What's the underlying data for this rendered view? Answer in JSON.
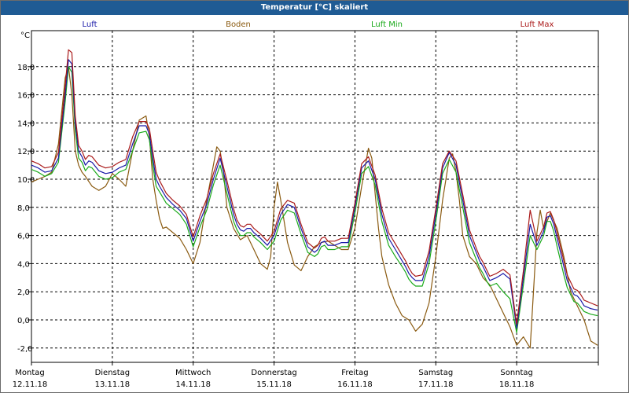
{
  "chart_data": {
    "type": "line",
    "title": "Temperatur [°C] skaliert",
    "ylabel": "°C",
    "ylim": [
      -3,
      20
    ],
    "yticks": [
      -2,
      0,
      2,
      4,
      6,
      8,
      10,
      12,
      14,
      16,
      18
    ],
    "ytick_labels": [
      "-2,0",
      "0,0",
      "2,0",
      "4,0",
      "6,0",
      "8,0",
      "10,0",
      "12,0",
      "14,0",
      "16,0",
      "18,0"
    ],
    "xlim": [
      0,
      168
    ],
    "day_hours": [
      0,
      24,
      48,
      72,
      96,
      120,
      144
    ],
    "days": [
      {
        "name": "Montag",
        "date": "12.11.18"
      },
      {
        "name": "Dienstag",
        "date": "13.11.18"
      },
      {
        "name": "Mittwoch",
        "date": "14.11.18"
      },
      {
        "name": "Donnerstag",
        "date": "15.11.18"
      },
      {
        "name": "Freitag",
        "date": "16.11.18"
      },
      {
        "name": "Samstag",
        "date": "17.11.18"
      },
      {
        "name": "Sonntag",
        "date": "18.11.18"
      }
    ],
    "grid": true,
    "series": [
      {
        "name": "Luft",
        "color": "#1a1aa8",
        "x": [
          0,
          2,
          4,
          6,
          8,
          10,
          11,
          12,
          13,
          14,
          15,
          16,
          17,
          18,
          20,
          22,
          24,
          26,
          28,
          30,
          32,
          34,
          35,
          36,
          37,
          38,
          40,
          42,
          44,
          46,
          48,
          50,
          52,
          54,
          56,
          58,
          60,
          61,
          62,
          63,
          64,
          65,
          66,
          68,
          70,
          72,
          74,
          76,
          78,
          80,
          82,
          84,
          85,
          86,
          87,
          88,
          90,
          92,
          94,
          96,
          98,
          100,
          102,
          104,
          106,
          108,
          110,
          111,
          112,
          113,
          114,
          116,
          118,
          120,
          122,
          124,
          126,
          128,
          130,
          132,
          133,
          134,
          135,
          136,
          138,
          140,
          142,
          144,
          146,
          148,
          150,
          152,
          153,
          154,
          155,
          156,
          157,
          158,
          159,
          160,
          161,
          162,
          163,
          164,
          166,
          168
        ],
        "y": [
          11.0,
          10.8,
          10.5,
          10.6,
          11.5,
          16.0,
          18.5,
          18.2,
          14.0,
          12.0,
          11.6,
          11.0,
          11.3,
          11.2,
          10.6,
          10.4,
          10.5,
          10.8,
          11.0,
          12.5,
          13.8,
          13.8,
          13.2,
          11.5,
          10.0,
          9.5,
          8.7,
          8.2,
          7.8,
          7.2,
          5.6,
          7.0,
          8.2,
          10.0,
          11.5,
          9.5,
          7.5,
          6.8,
          6.4,
          6.3,
          6.5,
          6.5,
          6.2,
          5.8,
          5.3,
          6.0,
          7.5,
          8.2,
          8.0,
          6.5,
          5.2,
          4.8,
          5.0,
          5.5,
          5.6,
          5.3,
          5.3,
          5.5,
          5.5,
          8.0,
          10.8,
          11.3,
          10.0,
          7.5,
          5.8,
          5.0,
          4.2,
          3.8,
          3.3,
          3.0,
          2.8,
          2.8,
          4.5,
          7.5,
          10.8,
          11.9,
          11.0,
          8.5,
          6.0,
          4.8,
          4.2,
          3.8,
          3.3,
          2.8,
          3.0,
          3.3,
          2.9,
          -0.6,
          3.0,
          6.8,
          5.3,
          6.3,
          7.3,
          7.4,
          6.8,
          5.8,
          4.8,
          3.8,
          2.8,
          2.3,
          1.8,
          1.7,
          1.4,
          1.0,
          0.8,
          0.7
        ]
      },
      {
        "name": "Boden",
        "color": "#8a5a10",
        "x": [
          0,
          2,
          4,
          6,
          8,
          10,
          11,
          12,
          13,
          14,
          15,
          16,
          18,
          20,
          22,
          24,
          26,
          28,
          30,
          32,
          34,
          35,
          36,
          37,
          38,
          39,
          40,
          42,
          44,
          46,
          48,
          50,
          52,
          54,
          55,
          56,
          57,
          58,
          60,
          62,
          64,
          66,
          68,
          70,
          71,
          72,
          73,
          74,
          76,
          78,
          80,
          82,
          84,
          86,
          88,
          90,
          92,
          94,
          96,
          98,
          100,
          101,
          102,
          103,
          104,
          106,
          108,
          110,
          112,
          114,
          116,
          118,
          120,
          122,
          124,
          125,
          126,
          127,
          128,
          130,
          132,
          134,
          136,
          138,
          140,
          142,
          144,
          146,
          148,
          150,
          151,
          152,
          153,
          154,
          156,
          158,
          160,
          162,
          164,
          166,
          168
        ],
        "y": [
          9.8,
          10.0,
          10.2,
          10.5,
          12.5,
          17.2,
          18.0,
          16.0,
          12.0,
          11.0,
          10.5,
          10.2,
          9.5,
          9.2,
          9.5,
          10.4,
          10.0,
          9.5,
          12.0,
          14.2,
          14.5,
          13.0,
          10.0,
          8.5,
          7.2,
          6.5,
          6.6,
          6.2,
          5.8,
          5.0,
          4.0,
          5.5,
          8.5,
          11.0,
          12.3,
          12.0,
          10.5,
          8.0,
          6.5,
          5.7,
          6.0,
          5.0,
          4.0,
          3.6,
          4.5,
          8.0,
          9.8,
          8.5,
          5.5,
          3.9,
          3.5,
          4.5,
          5.2,
          5.5,
          5.6,
          5.3,
          5.0,
          5.0,
          6.5,
          9.5,
          12.2,
          11.5,
          9.0,
          6.5,
          4.5,
          2.5,
          1.2,
          0.3,
          0.0,
          -0.8,
          -0.3,
          1.2,
          4.5,
          8.5,
          11.5,
          11.8,
          10.5,
          8.5,
          6.0,
          4.5,
          4.0,
          3.0,
          2.5,
          1.5,
          0.5,
          -0.5,
          -1.8,
          -1.2,
          -2.0,
          6.2,
          7.8,
          6.5,
          7.0,
          7.6,
          6.5,
          4.5,
          2.0,
          1.0,
          0.0,
          -1.5,
          -1.8
        ]
      },
      {
        "name": "Luft Min",
        "color": "#1aaa1a",
        "x": [
          0,
          2,
          4,
          6,
          8,
          10,
          11,
          12,
          13,
          14,
          15,
          16,
          17,
          18,
          20,
          22,
          24,
          26,
          28,
          30,
          32,
          34,
          35,
          36,
          37,
          38,
          40,
          42,
          44,
          46,
          48,
          50,
          52,
          54,
          56,
          58,
          60,
          61,
          62,
          63,
          64,
          65,
          66,
          68,
          70,
          72,
          74,
          76,
          78,
          80,
          82,
          84,
          85,
          86,
          87,
          88,
          90,
          92,
          94,
          96,
          98,
          100,
          102,
          104,
          106,
          108,
          110,
          111,
          112,
          113,
          114,
          116,
          118,
          120,
          122,
          124,
          126,
          128,
          130,
          132,
          133,
          134,
          135,
          136,
          138,
          140,
          142,
          144,
          146,
          148,
          150,
          152,
          153,
          154,
          155,
          156,
          157,
          158,
          159,
          160,
          161,
          162,
          163,
          164,
          166,
          168
        ],
        "y": [
          10.7,
          10.5,
          10.2,
          10.4,
          11.2,
          15.5,
          18.0,
          17.6,
          13.5,
          11.5,
          11.2,
          10.6,
          10.9,
          10.8,
          10.2,
          10.0,
          10.1,
          10.5,
          10.7,
          12.0,
          13.3,
          13.4,
          12.8,
          11.0,
          9.5,
          9.1,
          8.3,
          7.9,
          7.5,
          6.8,
          5.2,
          6.6,
          7.8,
          9.6,
          11.0,
          9.0,
          7.0,
          6.4,
          6.0,
          6.0,
          6.2,
          6.2,
          5.9,
          5.5,
          5.0,
          5.6,
          7.1,
          7.8,
          7.6,
          6.1,
          4.8,
          4.5,
          4.7,
          5.2,
          5.3,
          5.0,
          5.0,
          5.2,
          5.2,
          7.6,
          10.4,
          10.9,
          9.6,
          7.0,
          5.3,
          4.5,
          3.8,
          3.4,
          2.9,
          2.6,
          2.4,
          2.4,
          4.0,
          7.0,
          10.4,
          11.4,
          10.5,
          8.0,
          5.5,
          4.3,
          3.7,
          3.3,
          2.8,
          2.4,
          2.6,
          2.0,
          1.5,
          -0.9,
          2.5,
          6.0,
          5.0,
          6.0,
          7.0,
          7.0,
          6.3,
          5.2,
          4.2,
          3.2,
          2.3,
          1.8,
          1.3,
          1.2,
          0.9,
          0.6,
          0.4,
          0.3
        ]
      },
      {
        "name": "Luft Max",
        "color": "#aa1a1a",
        "x": [
          0,
          2,
          4,
          6,
          8,
          10,
          11,
          12,
          13,
          14,
          15,
          16,
          17,
          18,
          20,
          22,
          24,
          26,
          28,
          30,
          32,
          34,
          35,
          36,
          37,
          38,
          40,
          42,
          44,
          46,
          48,
          50,
          52,
          54,
          56,
          58,
          60,
          61,
          62,
          63,
          64,
          65,
          66,
          68,
          70,
          72,
          74,
          76,
          78,
          80,
          82,
          84,
          85,
          86,
          87,
          88,
          90,
          92,
          94,
          96,
          98,
          100,
          102,
          104,
          106,
          108,
          110,
          111,
          112,
          113,
          114,
          116,
          118,
          120,
          122,
          124,
          126,
          128,
          130,
          132,
          133,
          134,
          135,
          136,
          138,
          140,
          142,
          144,
          146,
          148,
          150,
          152,
          153,
          154,
          155,
          156,
          157,
          158,
          159,
          160,
          161,
          162,
          163,
          164,
          166,
          168
        ],
        "y": [
          11.3,
          11.1,
          10.8,
          10.9,
          11.9,
          16.6,
          19.2,
          19.0,
          14.5,
          12.4,
          12.0,
          11.4,
          11.7,
          11.6,
          11.0,
          10.8,
          10.9,
          11.2,
          11.4,
          13.0,
          14.1,
          14.1,
          13.6,
          12.0,
          10.5,
          9.9,
          9.0,
          8.5,
          8.1,
          7.5,
          5.9,
          7.4,
          8.6,
          10.4,
          11.8,
          9.9,
          7.9,
          7.1,
          6.7,
          6.6,
          6.8,
          6.8,
          6.5,
          6.1,
          5.6,
          6.3,
          7.9,
          8.5,
          8.3,
          6.8,
          5.5,
          5.1,
          5.3,
          5.8,
          5.9,
          5.6,
          5.6,
          5.8,
          5.8,
          8.3,
          11.1,
          11.6,
          10.3,
          7.9,
          6.2,
          5.4,
          4.6,
          4.2,
          3.7,
          3.3,
          3.1,
          3.2,
          4.9,
          7.9,
          11.1,
          12.0,
          11.3,
          8.9,
          6.4,
          5.1,
          4.5,
          4.1,
          3.6,
          3.1,
          3.3,
          3.6,
          3.2,
          -0.3,
          3.5,
          7.8,
          5.6,
          6.6,
          7.6,
          7.7,
          7.1,
          6.2,
          5.2,
          4.2,
          3.2,
          2.7,
          2.2,
          2.1,
          1.8,
          1.4,
          1.2,
          1.0
        ]
      }
    ]
  }
}
